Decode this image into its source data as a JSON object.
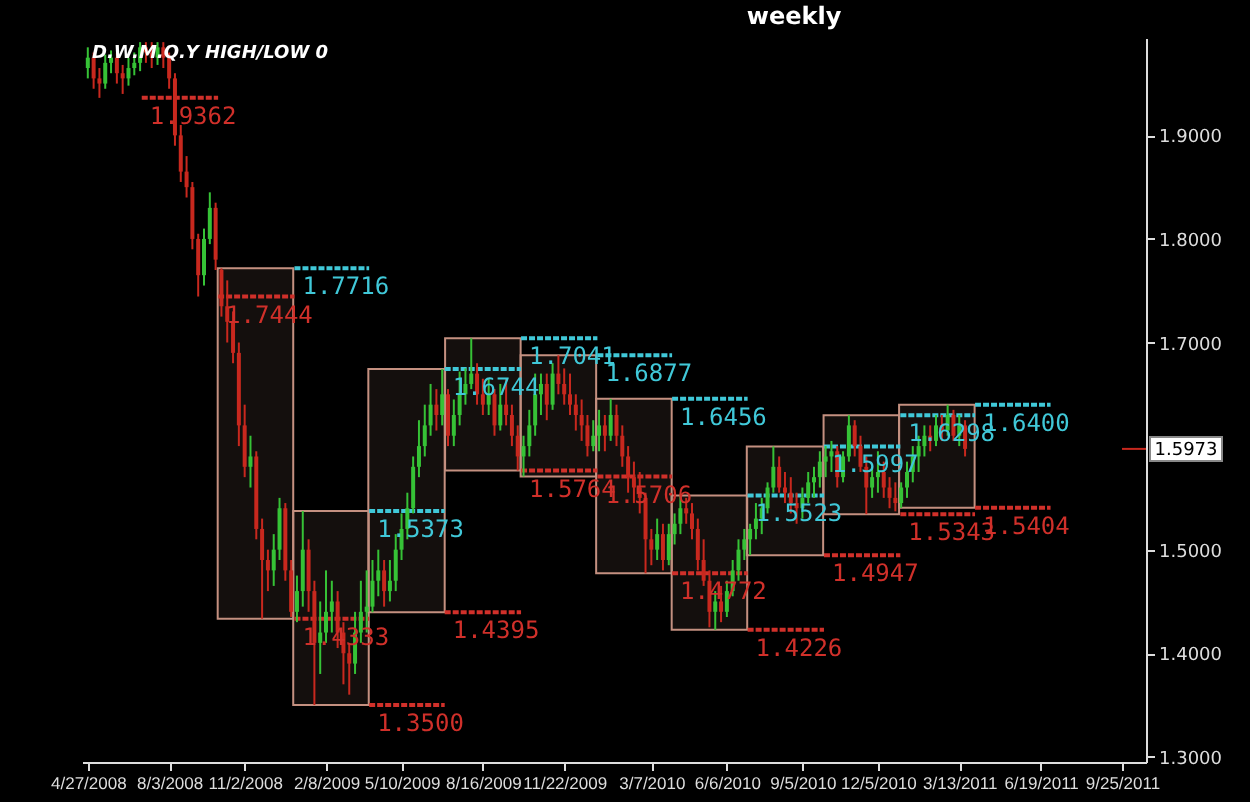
{
  "chart_data": {
    "type": "candlestick",
    "title": "weekly",
    "x": [
      "2008-04-27",
      "2008-05-04",
      "2008-05-11",
      "2008-05-18",
      "2008-05-25",
      "2008-06-01",
      "2008-06-08",
      "2008-06-15",
      "2008-06-22",
      "2008-06-29",
      "2008-07-06",
      "2008-07-13",
      "2008-07-20",
      "2008-07-27",
      "2008-08-03",
      "2008-08-10",
      "2008-08-17",
      "2008-08-24",
      "2008-08-31",
      "2008-09-07",
      "2008-09-14",
      "2008-09-21",
      "2008-09-28",
      "2008-10-05",
      "2008-10-12",
      "2008-10-19",
      "2008-10-26",
      "2008-11-02",
      "2008-11-09",
      "2008-11-16",
      "2008-11-23",
      "2008-11-30",
      "2008-12-07",
      "2008-12-14",
      "2008-12-21",
      "2008-12-28",
      "2009-01-04",
      "2009-01-11",
      "2009-01-18",
      "2009-01-25",
      "2009-02-01",
      "2009-02-08",
      "2009-02-15",
      "2009-02-22",
      "2009-03-01",
      "2009-03-08",
      "2009-03-15",
      "2009-03-22",
      "2009-03-29",
      "2009-04-05",
      "2009-04-12",
      "2009-04-19",
      "2009-04-26",
      "2009-05-03",
      "2009-05-10",
      "2009-05-17",
      "2009-05-24",
      "2009-05-31",
      "2009-06-07",
      "2009-06-14",
      "2009-06-21",
      "2009-06-28",
      "2009-07-05",
      "2009-07-12",
      "2009-07-19",
      "2009-07-26",
      "2009-08-02",
      "2009-08-09",
      "2009-08-16",
      "2009-08-23",
      "2009-08-30",
      "2009-09-06",
      "2009-09-13",
      "2009-09-20",
      "2009-09-27",
      "2009-10-04",
      "2009-10-11",
      "2009-10-18",
      "2009-10-25",
      "2009-11-01",
      "2009-11-08",
      "2009-11-15",
      "2009-11-22",
      "2009-11-29",
      "2009-12-06",
      "2009-12-13",
      "2009-12-20",
      "2009-12-27",
      "2010-01-03",
      "2010-01-10",
      "2010-01-17",
      "2010-01-24",
      "2010-01-31",
      "2010-02-07",
      "2010-02-14",
      "2010-02-21",
      "2010-02-28",
      "2010-03-07",
      "2010-03-14",
      "2010-03-21",
      "2010-03-28",
      "2010-04-04",
      "2010-04-11",
      "2010-04-18",
      "2010-04-25",
      "2010-05-02",
      "2010-05-09",
      "2010-05-16",
      "2010-05-23",
      "2010-05-30",
      "2010-06-06",
      "2010-06-13",
      "2010-06-20",
      "2010-06-27",
      "2010-07-04",
      "2010-07-11",
      "2010-07-18",
      "2010-07-25",
      "2010-08-01",
      "2010-08-08",
      "2010-08-15",
      "2010-08-22",
      "2010-08-29",
      "2010-09-05",
      "2010-09-12",
      "2010-09-19",
      "2010-09-26",
      "2010-10-03",
      "2010-10-10",
      "2010-10-17",
      "2010-10-24",
      "2010-10-31",
      "2010-11-07",
      "2010-11-14",
      "2010-11-21",
      "2010-11-28",
      "2010-12-05",
      "2010-12-12",
      "2010-12-19",
      "2010-12-26",
      "2011-01-02",
      "2011-01-09",
      "2011-01-16",
      "2011-01-23",
      "2011-01-30",
      "2011-02-06",
      "2011-02-13",
      "2011-02-20",
      "2011-02-27",
      "2011-03-06",
      "2011-03-13",
      "2011-03-20"
    ],
    "ohlc": [
      [
        1.965,
        1.985,
        1.955,
        1.975
      ],
      [
        1.975,
        1.98,
        1.945,
        1.955
      ],
      [
        1.955,
        1.965,
        1.9362,
        1.95
      ],
      [
        1.95,
        1.978,
        1.945,
        1.97
      ],
      [
        1.97,
        1.982,
        1.96,
        1.975
      ],
      [
        1.975,
        1.98,
        1.95,
        1.96
      ],
      [
        1.96,
        1.968,
        1.94,
        1.955
      ],
      [
        1.955,
        1.975,
        1.948,
        1.965
      ],
      [
        1.965,
        1.98,
        1.958,
        1.97
      ],
      [
        1.97,
        1.99,
        1.962,
        1.985
      ],
      [
        1.985,
        1.99,
        1.97,
        1.98
      ],
      [
        1.98,
        1.99,
        1.965,
        1.975
      ],
      [
        1.975,
        1.99,
        1.968,
        1.985
      ],
      [
        1.985,
        1.99,
        1.965,
        1.975
      ],
      [
        1.975,
        1.98,
        1.945,
        1.955
      ],
      [
        1.955,
        1.96,
        1.89,
        1.9
      ],
      [
        1.9,
        1.91,
        1.855,
        1.865
      ],
      [
        1.865,
        1.88,
        1.84,
        1.85
      ],
      [
        1.85,
        1.855,
        1.79,
        1.8
      ],
      [
        1.8,
        1.805,
        1.7444,
        1.765
      ],
      [
        1.765,
        1.81,
        1.755,
        1.8
      ],
      [
        1.8,
        1.845,
        1.795,
        1.83
      ],
      [
        1.83,
        1.835,
        1.77,
        1.78
      ],
      [
        1.77,
        1.7716,
        1.725,
        1.735
      ],
      [
        1.735,
        1.76,
        1.7,
        1.72
      ],
      [
        1.72,
        1.73,
        1.68,
        1.69
      ],
      [
        1.69,
        1.7,
        1.6,
        1.62
      ],
      [
        1.62,
        1.64,
        1.57,
        1.58
      ],
      [
        1.58,
        1.61,
        1.56,
        1.59
      ],
      [
        1.59,
        1.595,
        1.51,
        1.52
      ],
      [
        1.52,
        1.53,
        1.4333,
        1.49
      ],
      [
        1.49,
        1.5,
        1.46,
        1.48
      ],
      [
        1.48,
        1.515,
        1.465,
        1.5
      ],
      [
        1.5,
        1.55,
        1.49,
        1.54
      ],
      [
        1.54,
        1.545,
        1.47,
        1.48
      ],
      [
        1.48,
        1.49,
        1.435,
        1.44
      ],
      [
        1.44,
        1.475,
        1.43,
        1.46
      ],
      [
        1.46,
        1.5373,
        1.445,
        1.5
      ],
      [
        1.5,
        1.51,
        1.44,
        1.46
      ],
      [
        1.46,
        1.47,
        1.35,
        1.41
      ],
      [
        1.41,
        1.45,
        1.38,
        1.42
      ],
      [
        1.42,
        1.48,
        1.41,
        1.44
      ],
      [
        1.44,
        1.47,
        1.42,
        1.45
      ],
      [
        1.45,
        1.46,
        1.405,
        1.42
      ],
      [
        1.42,
        1.43,
        1.37,
        1.4
      ],
      [
        1.4,
        1.41,
        1.36,
        1.39
      ],
      [
        1.39,
        1.44,
        1.38,
        1.42
      ],
      [
        1.42,
        1.47,
        1.41,
        1.44
      ],
      [
        1.44,
        1.48,
        1.42,
        1.445
      ],
      [
        1.445,
        1.49,
        1.4395,
        1.47
      ],
      [
        1.47,
        1.5,
        1.455,
        1.48
      ],
      [
        1.48,
        1.49,
        1.445,
        1.46
      ],
      [
        1.46,
        1.49,
        1.45,
        1.47
      ],
      [
        1.47,
        1.515,
        1.46,
        1.5
      ],
      [
        1.5,
        1.535,
        1.49,
        1.52
      ],
      [
        1.52,
        1.555,
        1.51,
        1.54
      ],
      [
        1.54,
        1.59,
        1.535,
        1.58
      ],
      [
        1.58,
        1.625,
        1.57,
        1.6
      ],
      [
        1.6,
        1.64,
        1.59,
        1.62
      ],
      [
        1.62,
        1.66,
        1.61,
        1.64
      ],
      [
        1.64,
        1.655,
        1.615,
        1.63
      ],
      [
        1.63,
        1.6744,
        1.62,
        1.65
      ],
      [
        1.65,
        1.655,
        1.6,
        1.61
      ],
      [
        1.61,
        1.645,
        1.6,
        1.63
      ],
      [
        1.63,
        1.672,
        1.62,
        1.65
      ],
      [
        1.65,
        1.675,
        1.64,
        1.66
      ],
      [
        1.66,
        1.7041,
        1.655,
        1.67
      ],
      [
        1.67,
        1.68,
        1.64,
        1.65
      ],
      [
        1.65,
        1.665,
        1.63,
        1.64
      ],
      [
        1.64,
        1.665,
        1.63,
        1.65
      ],
      [
        1.65,
        1.655,
        1.61,
        1.62
      ],
      [
        1.62,
        1.66,
        1.615,
        1.64
      ],
      [
        1.64,
        1.665,
        1.62,
        1.63
      ],
      [
        1.63,
        1.64,
        1.6,
        1.61
      ],
      [
        1.61,
        1.62,
        1.5764,
        1.59
      ],
      [
        1.59,
        1.61,
        1.5706,
        1.6
      ],
      [
        1.6,
        1.635,
        1.59,
        1.62
      ],
      [
        1.62,
        1.67,
        1.61,
        1.65
      ],
      [
        1.65,
        1.67,
        1.63,
        1.66
      ],
      [
        1.66,
        1.67,
        1.625,
        1.64
      ],
      [
        1.64,
        1.68,
        1.635,
        1.67
      ],
      [
        1.67,
        1.6877,
        1.65,
        1.66
      ],
      [
        1.66,
        1.675,
        1.64,
        1.65
      ],
      [
        1.65,
        1.67,
        1.63,
        1.64
      ],
      [
        1.64,
        1.65,
        1.615,
        1.63
      ],
      [
        1.63,
        1.645,
        1.605,
        1.62
      ],
      [
        1.62,
        1.63,
        1.59,
        1.6
      ],
      [
        1.6,
        1.625,
        1.595,
        1.61
      ],
      [
        1.61,
        1.635,
        1.595,
        1.62
      ],
      [
        1.62,
        1.63,
        1.595,
        1.61
      ],
      [
        1.61,
        1.6456,
        1.605,
        1.63
      ],
      [
        1.63,
        1.64,
        1.6,
        1.61
      ],
      [
        1.61,
        1.62,
        1.58,
        1.59
      ],
      [
        1.59,
        1.6,
        1.555,
        1.57
      ],
      [
        1.57,
        1.585,
        1.545,
        1.56
      ],
      [
        1.56,
        1.575,
        1.535,
        1.55
      ],
      [
        1.55,
        1.555,
        1.4772,
        1.51
      ],
      [
        1.51,
        1.52,
        1.485,
        1.5
      ],
      [
        1.5,
        1.53,
        1.49,
        1.515
      ],
      [
        1.515,
        1.525,
        1.48,
        1.49
      ],
      [
        1.49,
        1.525,
        1.485,
        1.515
      ],
      [
        1.515,
        1.535,
        1.505,
        1.525
      ],
      [
        1.525,
        1.5523,
        1.515,
        1.54
      ],
      [
        1.54,
        1.55,
        1.525,
        1.535
      ],
      [
        1.535,
        1.545,
        1.51,
        1.52
      ],
      [
        1.52,
        1.53,
        1.48,
        1.49
      ],
      [
        1.49,
        1.51,
        1.465,
        1.47
      ],
      [
        1.47,
        1.48,
        1.425,
        1.44
      ],
      [
        1.44,
        1.46,
        1.4226,
        1.45
      ],
      [
        1.45,
        1.465,
        1.43,
        1.44
      ],
      [
        1.44,
        1.47,
        1.435,
        1.46
      ],
      [
        1.46,
        1.49,
        1.455,
        1.48
      ],
      [
        1.48,
        1.51,
        1.47,
        1.5
      ],
      [
        1.5,
        1.52,
        1.49,
        1.51
      ],
      [
        1.51,
        1.525,
        1.4947,
        1.52
      ],
      [
        1.52,
        1.545,
        1.51,
        1.53
      ],
      [
        1.53,
        1.55,
        1.515,
        1.54
      ],
      [
        1.54,
        1.565,
        1.535,
        1.56
      ],
      [
        1.56,
        1.5997,
        1.555,
        1.58
      ],
      [
        1.58,
        1.59,
        1.555,
        1.56
      ],
      [
        1.56,
        1.575,
        1.545,
        1.555
      ],
      [
        1.555,
        1.57,
        1.535,
        1.545
      ],
      [
        1.545,
        1.555,
        1.525,
        1.54
      ],
      [
        1.54,
        1.56,
        1.53,
        1.55
      ],
      [
        1.55,
        1.575,
        1.545,
        1.565
      ],
      [
        1.565,
        1.58,
        1.55,
        1.57
      ],
      [
        1.57,
        1.595,
        1.56,
        1.585
      ],
      [
        1.585,
        1.6,
        1.57,
        1.59
      ],
      [
        1.59,
        1.605,
        1.575,
        1.595
      ],
      [
        1.595,
        1.6,
        1.56,
        1.57
      ],
      [
        1.57,
        1.595,
        1.565,
        1.59
      ],
      [
        1.59,
        1.6298,
        1.585,
        1.62
      ],
      [
        1.62,
        1.625,
        1.59,
        1.6
      ],
      [
        1.6,
        1.61,
        1.575,
        1.58
      ],
      [
        1.58,
        1.59,
        1.5343,
        1.56
      ],
      [
        1.56,
        1.58,
        1.55,
        1.57
      ],
      [
        1.57,
        1.595,
        1.555,
        1.575
      ],
      [
        1.575,
        1.585,
        1.55,
        1.56
      ],
      [
        1.56,
        1.57,
        1.54,
        1.55
      ],
      [
        1.55,
        1.565,
        1.537,
        1.545
      ],
      [
        1.545,
        1.565,
        1.5404,
        1.56
      ],
      [
        1.56,
        1.585,
        1.55,
        1.575
      ],
      [
        1.575,
        1.6,
        1.565,
        1.59
      ],
      [
        1.59,
        1.61,
        1.575,
        1.6
      ],
      [
        1.6,
        1.62,
        1.59,
        1.61
      ],
      [
        1.61,
        1.62,
        1.595,
        1.605
      ],
      [
        1.605,
        1.63,
        1.6,
        1.62
      ],
      [
        1.62,
        1.63,
        1.605,
        1.615
      ],
      [
        1.615,
        1.64,
        1.61,
        1.63
      ],
      [
        1.63,
        1.635,
        1.605,
        1.61
      ],
      [
        1.61,
        1.63,
        1.6,
        1.62
      ],
      [
        1.62,
        1.625,
        1.59,
        1.5973
      ]
    ],
    "series": [
      {
        "type": "bar",
        "color": "#c49080",
        "x": [
          "2008-11-15",
          "2009-02-14",
          "2009-05-16",
          "2009-08-16",
          "2009-11-15",
          "2010-02-14",
          "2010-05-16",
          "2010-08-15",
          "2010-11-15",
          "2011-02-14"
        ],
        "base": [
          1.4333,
          1.35,
          1.4395,
          1.5764,
          1.5706,
          1.4772,
          1.4226,
          1.4947,
          1.5343,
          1.5404
        ],
        "values": [
          0.3383,
          0.1873,
          0.2349,
          0.1277,
          0.1171,
          0.1684,
          0.1297,
          0.105,
          0.0955,
          0.0996
        ]
      },
      {
        "type": "line",
        "line_style": "dashed",
        "color": "#d0302a",
        "x": [
          "2008-07-01",
          "2008-10-01"
        ],
        "values": [
          1.9362,
          1.9362
        ]
      },
      {
        "type": "line",
        "line_style": "dashed",
        "color": "#d0302a",
        "x": [
          "2008-10-01",
          "2009-01-01"
        ],
        "values": [
          1.7444,
          1.7444
        ]
      },
      {
        "type": "line",
        "line_style": "dashed",
        "color": "#40c8d8",
        "x": [
          "2009-01-01",
          "2009-04-01"
        ],
        "values": [
          1.7716,
          1.7716
        ]
      },
      {
        "type": "line",
        "line_style": "dashed",
        "color": "#d0302a",
        "x": [
          "2009-01-01",
          "2009-04-01"
        ],
        "values": [
          1.4333,
          1.4333
        ]
      },
      {
        "type": "line",
        "line_style": "dashed",
        "color": "#40c8d8",
        "x": [
          "2009-04-01",
          "2009-07-01"
        ],
        "values": [
          1.5373,
          1.5373
        ]
      },
      {
        "type": "line",
        "line_style": "dashed",
        "color": "#d0302a",
        "x": [
          "2009-04-01",
          "2009-07-01"
        ],
        "values": [
          1.35,
          1.35
        ]
      },
      {
        "type": "line",
        "line_style": "dashed",
        "color": "#40c8d8",
        "x": [
          "2009-07-01",
          "2009-10-01"
        ],
        "values": [
          1.6744,
          1.6744
        ]
      },
      {
        "type": "line",
        "line_style": "dashed",
        "color": "#d0302a",
        "x": [
          "2009-07-01",
          "2009-10-01"
        ],
        "values": [
          1.4395,
          1.4395
        ]
      },
      {
        "type": "line",
        "line_style": "dashed",
        "color": "#40c8d8",
        "x": [
          "2009-10-01",
          "2010-01-01"
        ],
        "values": [
          1.7041,
          1.7041
        ]
      },
      {
        "type": "line",
        "line_style": "dashed",
        "color": "#d0302a",
        "x": [
          "2009-10-01",
          "2010-01-01"
        ],
        "values": [
          1.5764,
          1.5764
        ]
      },
      {
        "type": "line",
        "line_style": "dashed",
        "color": "#40c8d8",
        "x": [
          "2010-01-01",
          "2010-04-01"
        ],
        "values": [
          1.6877,
          1.6877
        ]
      },
      {
        "type": "line",
        "line_style": "dashed",
        "color": "#d0302a",
        "x": [
          "2010-01-01",
          "2010-04-01"
        ],
        "values": [
          1.5706,
          1.5706
        ]
      },
      {
        "type": "line",
        "line_style": "dashed",
        "color": "#40c8d8",
        "x": [
          "2010-04-01",
          "2010-07-01"
        ],
        "values": [
          1.6456,
          1.6456
        ]
      },
      {
        "type": "line",
        "line_style": "dashed",
        "color": "#d0302a",
        "x": [
          "2010-04-01",
          "2010-07-01"
        ],
        "values": [
          1.4772,
          1.4772
        ]
      },
      {
        "type": "line",
        "line_style": "dashed",
        "color": "#40c8d8",
        "x": [
          "2010-07-01",
          "2010-10-01"
        ],
        "values": [
          1.5523,
          1.5523
        ]
      },
      {
        "type": "line",
        "line_style": "dashed",
        "color": "#d0302a",
        "x": [
          "2010-07-01",
          "2010-10-01"
        ],
        "values": [
          1.4226,
          1.4226
        ]
      },
      {
        "type": "line",
        "line_style": "dashed",
        "color": "#40c8d8",
        "x": [
          "2010-10-01",
          "2011-01-01"
        ],
        "values": [
          1.5997,
          1.5997
        ]
      },
      {
        "type": "line",
        "line_style": "dashed",
        "color": "#d0302a",
        "x": [
          "2010-10-01",
          "2011-01-01"
        ],
        "values": [
          1.4947,
          1.4947
        ]
      },
      {
        "type": "line",
        "line_style": "dashed",
        "color": "#40c8d8",
        "x": [
          "2011-01-01",
          "2011-04-01"
        ],
        "values": [
          1.6298,
          1.6298
        ]
      },
      {
        "type": "line",
        "line_style": "dashed",
        "color": "#d0302a",
        "x": [
          "2011-01-01",
          "2011-04-01"
        ],
        "values": [
          1.5343,
          1.5343
        ]
      },
      {
        "type": "line",
        "line_style": "dashed",
        "color": "#40c8d8",
        "x": [
          "2011-04-01",
          "2011-07-01"
        ],
        "values": [
          1.64,
          1.64
        ]
      },
      {
        "type": "line",
        "line_style": "dashed",
        "color": "#d0302a",
        "x": [
          "2011-04-01",
          "2011-07-01"
        ],
        "values": [
          1.5404,
          1.5404
        ]
      }
    ],
    "annotations": [
      "D.W.M.Q.Y HIGH/LOW 0",
      {
        "text": "1.9362",
        "x": "2008-07-01",
        "y": 1.9362
      },
      {
        "text": "1.7444",
        "x": "2008-10-01",
        "y": 1.7444
      },
      {
        "text": "1.7716",
        "x": "2009-01-01",
        "y": 1.7716
      },
      {
        "text": "1.4333",
        "x": "2009-01-01",
        "y": 1.4333
      },
      {
        "text": "1.5373",
        "x": "2009-04-01",
        "y": 1.5373
      },
      {
        "text": "1.3500",
        "x": "2009-04-01",
        "y": 1.35
      },
      {
        "text": "1.6744",
        "x": "2009-07-01",
        "y": 1.6744
      },
      {
        "text": "1.4395",
        "x": "2009-07-01",
        "y": 1.4395
      },
      {
        "text": "1.7041",
        "x": "2009-10-01",
        "y": 1.7041
      },
      {
        "text": "1.5764",
        "x": "2009-10-01",
        "y": 1.5764
      },
      {
        "text": "1.6877",
        "x": "2010-01-01",
        "y": 1.6877
      },
      {
        "text": "1.5706",
        "x": "2010-01-01",
        "y": 1.5706
      },
      {
        "text": "1.6456",
        "x": "2010-04-01",
        "y": 1.6456
      },
      {
        "text": "1.4772",
        "x": "2010-04-01",
        "y": 1.4772
      },
      {
        "text": "1.5523",
        "x": "2010-07-01",
        "y": 1.5523
      },
      {
        "text": "1.4226",
        "x": "2010-07-01",
        "y": 1.4226
      },
      {
        "text": "1.5997",
        "x": "2010-10-01",
        "y": 1.5997
      },
      {
        "text": "1.4947",
        "x": "2010-10-01",
        "y": 1.4947
      },
      {
        "text": "1.6298",
        "x": "2011-01-01",
        "y": 1.6298
      },
      {
        "text": "1.5343",
        "x": "2011-01-01",
        "y": 1.5343
      },
      {
        "text": "1.6400",
        "x": "2011-04-01",
        "y": 1.64
      },
      {
        "text": "1.5404",
        "x": "2011-04-01",
        "y": 1.5404
      }
    ],
    "ref_lines": [
      {
        "axis": "y",
        "value": 1.5973,
        "label": "1.5973"
      }
    ],
    "xlim": [
      "2008-04-20",
      "2011-10-24"
    ],
    "ylim": [
      1.295,
      1.994
    ],
    "xticks": [
      {
        "value": "2008-04-27",
        "label": "4/27/2008"
      },
      {
        "value": "2008-08-03",
        "label": "8/3/2008"
      },
      {
        "value": "2008-11-02",
        "label": "11/2/2008"
      },
      {
        "value": "2009-02-08",
        "label": "2/8/2009"
      },
      {
        "value": "2009-05-10",
        "label": "5/10/2009"
      },
      {
        "value": "2009-08-16",
        "label": "8/16/2009"
      },
      {
        "value": "2009-11-22",
        "label": "11/22/2009"
      },
      {
        "value": "2010-03-07",
        "label": "3/7/2010"
      },
      {
        "value": "2010-06-06",
        "label": "6/6/2010"
      },
      {
        "value": "2010-09-05",
        "label": "9/5/2010"
      },
      {
        "value": "2010-12-05",
        "label": "12/5/2010"
      },
      {
        "value": "2011-03-13",
        "label": "3/13/2011"
      },
      {
        "value": "2011-06-19",
        "label": "6/19/2011"
      },
      {
        "value": "2011-09-25",
        "label": "9/25/2011"
      }
    ],
    "yticks": [
      {
        "value": 1.3,
        "label": "1.3000"
      },
      {
        "value": 1.4,
        "label": "1.4000"
      },
      {
        "value": 1.5,
        "label": "1.5000"
      },
      {
        "value": 1.7,
        "label": "1.7000"
      },
      {
        "value": 1.8,
        "label": "1.8000"
      },
      {
        "value": 1.9,
        "label": "1.9000"
      }
    ]
  }
}
